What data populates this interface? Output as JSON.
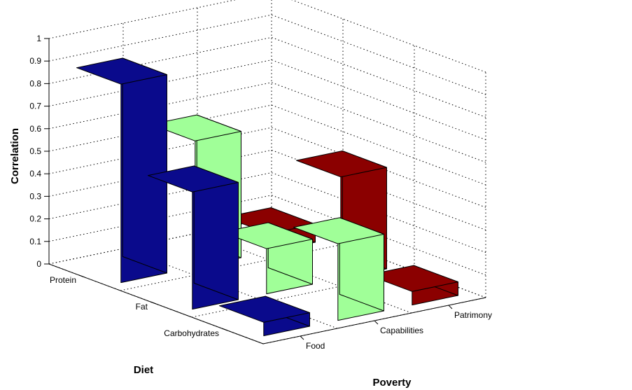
{
  "chart_data": {
    "type": "bar3d",
    "title": "",
    "xlabel": "Poverty",
    "ylabel": "Diet",
    "zlabel": "Correlation",
    "x_categories": [
      "Food",
      "Capabilities",
      "Patrimony"
    ],
    "y_categories": [
      "Protein",
      "Fat",
      "Carbohydrates"
    ],
    "zlim": [
      0,
      1
    ],
    "z_ticks": [
      "0",
      "0.1",
      "0.2",
      "0.3",
      "0.4",
      "0.5",
      "0.6",
      "0.7",
      "0.8",
      "0.9",
      "1"
    ],
    "grid": true,
    "series": [
      {
        "name": "Food",
        "color": "#0A0A8C",
        "values": [
          0.88,
          0.52,
          0.06
        ]
      },
      {
        "name": "Capabilities",
        "color": "#A0FF98",
        "values": [
          0.56,
          0.2,
          0.34
        ]
      },
      {
        "name": "Patrimony",
        "color": "#8B0000",
        "values": [
          0.08,
          0.45,
          0.06
        ]
      }
    ]
  }
}
